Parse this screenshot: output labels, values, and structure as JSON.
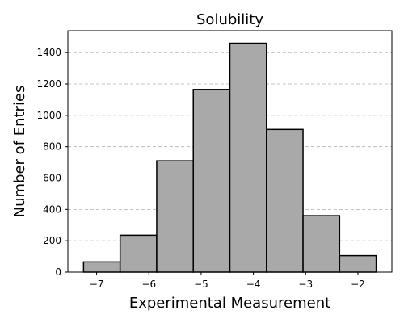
{
  "chart_data": {
    "type": "bar",
    "subtype": "histogram",
    "title": "Solubility",
    "xlabel": "Experimental Measurement",
    "ylabel": "Number of Entries",
    "bin_edges": [
      -7.25,
      -6.55,
      -5.85,
      -5.15,
      -4.45,
      -3.75,
      -3.05,
      -2.35,
      -1.65
    ],
    "values": [
      65,
      235,
      710,
      1165,
      1460,
      910,
      360,
      105
    ],
    "xlim": [
      -7.55,
      -1.35
    ],
    "ylim": [
      0,
      1540
    ],
    "xticks": [
      -7,
      -6,
      -5,
      -4,
      -3,
      -2
    ],
    "xtick_labels": [
      "−7",
      "−6",
      "−5",
      "−4",
      "−3",
      "−2"
    ],
    "yticks": [
      0,
      200,
      400,
      600,
      800,
      1000,
      1200,
      1400
    ],
    "ytick_labels": [
      "0",
      "200",
      "400",
      "600",
      "800",
      "1000",
      "1200",
      "1400"
    ],
    "grid": "y",
    "bar_color": "#a9a9a9",
    "edge_color": "#000000"
  }
}
